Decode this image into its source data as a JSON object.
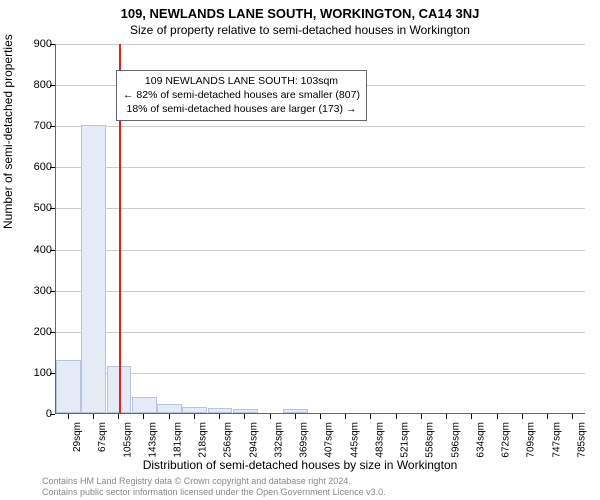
{
  "chart": {
    "type": "bar",
    "title": "109, NEWLANDS LANE SOUTH, WORKINGTON, CA14 3NJ",
    "subtitle": "Size of property relative to semi-detached houses in Workington",
    "y_axis_label": "Number of semi-detached properties",
    "x_axis_label": "Distribution of semi-detached houses by size in Workington",
    "ylim": [
      0,
      900
    ],
    "ytick_step": 100,
    "y_ticks": [
      0,
      100,
      200,
      300,
      400,
      500,
      600,
      700,
      800,
      900
    ],
    "x_labels": [
      "29sqm",
      "67sqm",
      "105sqm",
      "143sqm",
      "181sqm",
      "218sqm",
      "256sqm",
      "294sqm",
      "332sqm",
      "369sqm",
      "407sqm",
      "445sqm",
      "483sqm",
      "521sqm",
      "558sqm",
      "596sqm",
      "634sqm",
      "672sqm",
      "709sqm",
      "747sqm",
      "785sqm"
    ],
    "values": [
      130,
      700,
      115,
      40,
      22,
      15,
      12,
      10,
      0,
      10,
      0,
      0,
      0,
      0,
      0,
      0,
      0,
      0,
      0,
      0,
      0
    ],
    "bar_fill": "#e4eaf6",
    "bar_border": "#b6c4de",
    "grid_color": "#cccccc",
    "axis_color": "#666666",
    "background_color": "#ffffff",
    "marker_value_index": 2.0,
    "marker_line_color": "#dd2222",
    "annotation": {
      "line1": "109 NEWLANDS LANE SOUTH: 103sqm",
      "line2": "← 82% of semi-detached houses are smaller (807)",
      "line3": "18% of semi-detached houses are larger (173) →"
    },
    "title_fontsize": 13,
    "subtitle_fontsize": 12,
    "label_fontsize": 12,
    "tick_fontsize": 11
  },
  "footer": {
    "line1": "Contains HM Land Registry data © Crown copyright and database right 2024.",
    "line2": "Contains public sector information licensed under the Open Government Licence v3.0."
  }
}
